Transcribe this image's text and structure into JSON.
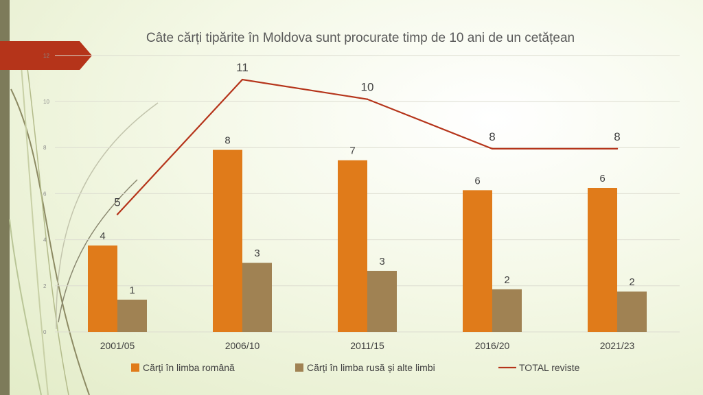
{
  "chart_data": {
    "type": "bar",
    "title": "Câte cărți tipărite în Moldova sunt procurate timp de 10 ani de un cetățean",
    "categories": [
      "2001/05",
      "2006/10",
      "2011/15",
      "2016/20",
      "2021/23"
    ],
    "ylim": [
      0,
      12
    ],
    "yticks": [
      0,
      2,
      4,
      6,
      8,
      10,
      12
    ],
    "grid": true,
    "legend_position": "bottom",
    "series": [
      {
        "name": "Cărți în limba română",
        "kind": "bar",
        "color": "#E07B1A",
        "values": [
          3.75,
          7.9,
          7.45,
          6.15,
          6.25
        ],
        "labels": [
          "4",
          "8",
          "7",
          "6",
          "6"
        ]
      },
      {
        "name": "Cărți  în limba rusă și alte limbi",
        "kind": "bar",
        "color": "#A08253",
        "values": [
          1.4,
          3.0,
          2.65,
          1.85,
          1.75
        ],
        "labels": [
          "1",
          "3",
          "3",
          "2",
          "2"
        ]
      },
      {
        "name": "TOTAL reviste",
        "kind": "line",
        "color": "#B5341A",
        "values": [
          5.1,
          10.95,
          10.1,
          7.95,
          7.95
        ],
        "labels": [
          "5",
          "11",
          "10",
          "8",
          "8"
        ]
      }
    ]
  }
}
